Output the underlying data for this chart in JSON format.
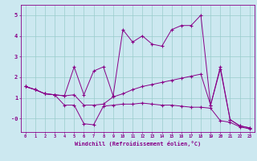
{
  "xlabel": "Windchill (Refroidissement éolien,°C)",
  "background_color": "#cce8f0",
  "line_color": "#880088",
  "grid_color": "#99cccc",
  "xlim": [
    -0.5,
    23.5
  ],
  "ylim": [
    -0.65,
    5.5
  ],
  "xticks": [
    0,
    1,
    2,
    3,
    4,
    5,
    6,
    7,
    8,
    9,
    10,
    11,
    12,
    13,
    14,
    15,
    16,
    17,
    18,
    19,
    20,
    21,
    22,
    23
  ],
  "ytick_vals": [
    0,
    1,
    2,
    3,
    4,
    5
  ],
  "ytick_labels": [
    "-0",
    "1",
    "2",
    "3",
    "4",
    "5"
  ],
  "series": {
    "line1": {
      "x": [
        0,
        1,
        2,
        3,
        4,
        5,
        6,
        7,
        8,
        9,
        10,
        11,
        12,
        13,
        14,
        15,
        16,
        17,
        18,
        19,
        20,
        21,
        22,
        23
      ],
      "y": [
        1.55,
        1.4,
        1.2,
        1.15,
        1.1,
        2.5,
        1.15,
        2.3,
        2.5,
        1.1,
        4.3,
        3.7,
        4.0,
        3.6,
        3.5,
        4.3,
        4.5,
        4.5,
        5.0,
        0.65,
        2.5,
        -0.05,
        -0.35,
        -0.45
      ]
    },
    "line2": {
      "x": [
        0,
        1,
        2,
        3,
        4,
        5,
        6,
        7,
        8,
        9,
        10,
        11,
        12,
        13,
        14,
        15,
        16,
        17,
        18,
        19,
        20,
        21,
        22,
        23
      ],
      "y": [
        1.55,
        1.4,
        1.2,
        1.15,
        1.1,
        1.15,
        0.65,
        0.65,
        0.7,
        1.05,
        1.2,
        1.4,
        1.55,
        1.65,
        1.75,
        1.85,
        1.95,
        2.05,
        2.15,
        0.65,
        2.4,
        -0.05,
        -0.35,
        -0.45
      ]
    },
    "line3": {
      "x": [
        0,
        1,
        2,
        3,
        4,
        5,
        6,
        7,
        8,
        9,
        10,
        11,
        12,
        13,
        14,
        15,
        16,
        17,
        18,
        19,
        20,
        21,
        22,
        23
      ],
      "y": [
        1.55,
        1.4,
        1.2,
        1.15,
        0.65,
        0.65,
        -0.25,
        -0.3,
        0.6,
        0.65,
        0.7,
        0.7,
        0.75,
        0.7,
        0.65,
        0.65,
        0.6,
        0.55,
        0.55,
        0.5,
        -0.1,
        -0.18,
        -0.4,
        -0.5
      ]
    }
  }
}
